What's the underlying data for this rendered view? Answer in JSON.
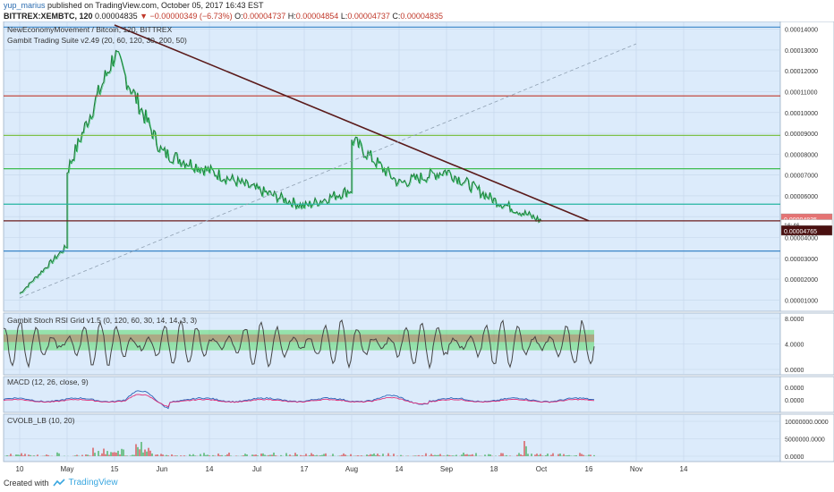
{
  "header": {
    "user": "yup_marius",
    "published": "published on TradingView.com, October 05, 2017 16:43 EST",
    "symbol": "BITTREX:XEMBTC, 120",
    "last": "0.00004835",
    "change_arrow": "▼",
    "change": "−0.00000349 (−6.73%)",
    "o_label": "O:",
    "o": "0.00004737",
    "h_label": "H:",
    "h": "0.00004854",
    "l_label": "L:",
    "l": "0.00004737",
    "c_label": "C:",
    "c": "0.00004835"
  },
  "panes": {
    "main_title": "NewEconomyMovement / Bitcoin, 120, BITTREX",
    "main_indicator": "Gambit Trading Suite v2.49 (20, 60, 120, 30, 200, 50)",
    "stoch_title": "Gambit Stoch RSI Grid v1.5 (0, 120, 60, 30, 14, 14, 3, 3)",
    "macd_title": "MACD (12, 26, close, 9)",
    "vol_title": "CVOLB_LB (10, 20)"
  },
  "price_tags": {
    "last": "0.00004835",
    "timer": "16:46",
    "level": "0.00004765"
  },
  "footer": {
    "created_with": "Created with",
    "brand": "TradingView"
  },
  "colors": {
    "background": "#dcebfb",
    "grid": "#c4d6ea",
    "trendline": "#5a1a1a",
    "red_line": "#c0392b",
    "green_line": "#7dc14a",
    "teal_line": "#26b5a0",
    "blue_line": "#3a86c8",
    "support_line": "#6b1d1d",
    "dashed_line": "#8fa0b2",
    "price_tag_red": "#e57373",
    "price_tag_dark": "#4a1010"
  },
  "chart_data": [
    {
      "type": "line",
      "title": "NewEconomyMovement / Bitcoin, 120, BITTREX",
      "x_tick_labels": [
        "10",
        "May",
        "15",
        "Jun",
        "14",
        "Jul",
        "17",
        "Aug",
        "14",
        "Sep",
        "18",
        "Oct",
        "16",
        "Nov",
        "14"
      ],
      "y_tick_labels": [
        "0.00001000",
        "0.00002000",
        "0.00003000",
        "0.00004000",
        "0.00005000",
        "0.00006000",
        "0.00007000",
        "0.00008000",
        "0.00009000",
        "0.00010000",
        "0.00011000",
        "0.00012000",
        "0.00013000",
        "0.00014000"
      ],
      "ylim": [
        8e-06,
        0.000142
      ],
      "series": [
        {
          "x": [
            "10",
            "May",
            "May",
            "15",
            "Jun",
            "14",
            "Jul",
            "17",
            "Aug",
            "Aug",
            "14",
            "Sep",
            "18",
            "Oct"
          ],
          "values": [
            1.3e-05,
            3.6e-05,
            7.2e-05,
            0.000128,
            8.1e-05,
            7.2e-05,
            6.3e-05,
            5.5e-05,
            6.3e-05,
            8.7e-05,
            6.6e-05,
            7.2e-05,
            5.8e-05,
            4.8e-05
          ]
        }
      ],
      "horizontal_levels": [
        {
          "value": 0.000141,
          "color": "#3a86c8"
        },
        {
          "value": 0.000108,
          "color": "#c0392b"
        },
        {
          "value": 8.9e-05,
          "color": "#7dc14a"
        },
        {
          "value": 7.3e-05,
          "color": "#3dbd4f"
        },
        {
          "value": 5.6e-05,
          "color": "#26b5a0"
        },
        {
          "value": 4.8e-05,
          "color": "#6b1d1d"
        },
        {
          "value": 3.35e-05,
          "color": "#3a86c8"
        }
      ],
      "trendlines": [
        {
          "from": [
            "15",
            0.000142
          ],
          "to": [
            "16",
            4.8e-05
          ],
          "color": "#5a1a1a"
        },
        {
          "from": [
            "10",
            1.1e-05
          ],
          "to": [
            "Nov",
            0.000133
          ],
          "color": "#8fa0b2",
          "style": "dashed"
        }
      ]
    },
    {
      "type": "line",
      "title": "Gambit Stoch RSI Grid v1.5 (0, 120, 60, 30, 14, 14, 3, 3)",
      "y_tick_labels": [
        "0.0000",
        "4.0000",
        "8.0000"
      ],
      "ylim": [
        0,
        8
      ]
    },
    {
      "type": "line",
      "title": "MACD (12, 26, close, 9)",
      "y_tick_labels": [
        "0.0000",
        "0.0000"
      ]
    },
    {
      "type": "bar",
      "title": "CVOLB_LB (10, 20)",
      "y_tick_labels": [
        "10000000.0000",
        "5000000.0000",
        "0.0000"
      ],
      "ylim": [
        0,
        10000000
      ]
    }
  ]
}
